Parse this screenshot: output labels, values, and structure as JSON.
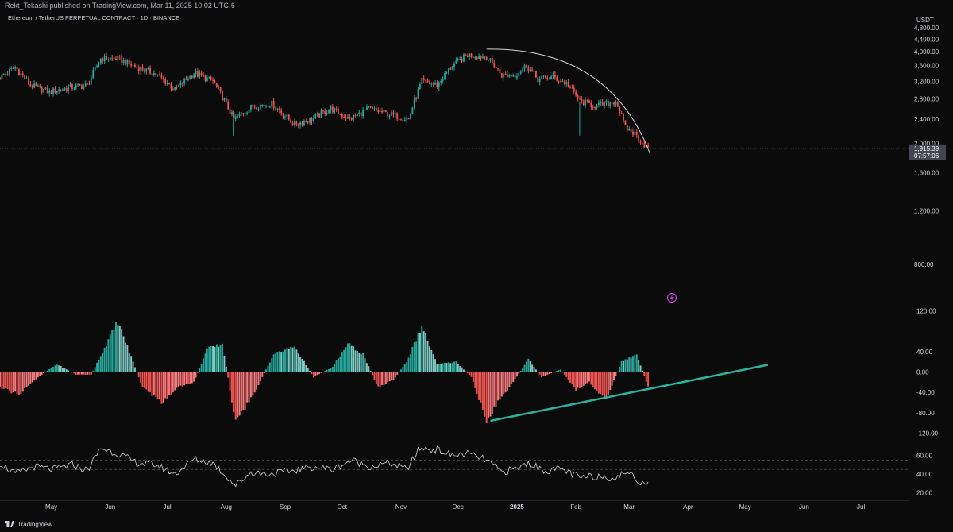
{
  "header": {
    "published": "Rekt_Tekashi published on TradingView.com, Mar 11, 2025 10:02 UTC-6",
    "symbol": "Ethereum / TetherUS PERPETUAL CONTRACT · 1D · BINANCE"
  },
  "footer": {
    "brand": "TradingView"
  },
  "colors": {
    "up": "#26a69a",
    "down": "#ef5350",
    "up_hist": "#80cbc4",
    "down_hist": "#f77c80",
    "bg": "#0b0b0b",
    "trend": "#2bb59a",
    "arc": "#d9d9d9",
    "rsi": "#d1d4dc"
  },
  "chart_data": [
    {
      "type": "candlestick",
      "title": "Ethereum / TetherUS PERPETUAL CONTRACT · 1D · BINANCE",
      "unit": "USDT",
      "x_labels": [
        "May",
        "Jun",
        "Jul",
        "Aug",
        "Sep",
        "Oct",
        "Nov",
        "Dec",
        "2025",
        "Feb",
        "Mar",
        "Apr",
        "May",
        "Jun",
        "Jul"
      ],
      "x_label_dates": [
        "2024-05-01",
        "2024-06-01",
        "2024-07-01",
        "2024-08-01",
        "2024-09-01",
        "2024-10-01",
        "2024-11-01",
        "2024-12-01",
        "2025-01-01",
        "2025-02-01",
        "2025-03-01",
        "2025-04-01",
        "2025-05-01",
        "2025-06-01",
        "2025-07-01"
      ],
      "x_range": [
        "2024-04-04",
        "2025-07-26"
      ],
      "y_ticks": [
        "4,800.00",
        "4,400.00",
        "4,000.00",
        "3,600.00",
        "3,200.00",
        "2,800.00",
        "2,400.00",
        "2,000.00",
        "1,600.00",
        "1,200.00",
        "800.00"
      ],
      "y_tick_values": [
        4800,
        4400,
        4000,
        3600,
        3200,
        2800,
        2400,
        2000,
        1600,
        1200,
        800
      ],
      "ylim": [
        600,
        5000
      ],
      "price_scale": "log",
      "last_price": "1,915.39",
      "countdown": "07:57:06",
      "close_series": {
        "dates": [
          "2024-04-04",
          "2024-04-12",
          "2024-04-20",
          "2024-04-30",
          "2024-05-10",
          "2024-05-20",
          "2024-05-27",
          "2024-06-05",
          "2024-06-15",
          "2024-06-25",
          "2024-07-05",
          "2024-07-15",
          "2024-07-25",
          "2024-08-05",
          "2024-08-15",
          "2024-08-25",
          "2024-09-06",
          "2024-09-15",
          "2024-09-25",
          "2024-10-05",
          "2024-10-15",
          "2024-10-25",
          "2024-11-05",
          "2024-11-12",
          "2024-11-20",
          "2024-11-28",
          "2024-12-06",
          "2024-12-16",
          "2024-12-24",
          "2024-12-31",
          "2025-01-06",
          "2025-01-12",
          "2025-01-20",
          "2025-01-27",
          "2025-02-03",
          "2025-02-12",
          "2025-02-22",
          "2025-02-27",
          "2025-03-04",
          "2025-03-11"
        ],
        "values": [
          3300,
          3550,
          3100,
          2950,
          3050,
          3100,
          3800,
          3800,
          3550,
          3380,
          3000,
          3400,
          3200,
          2400,
          2650,
          2700,
          2300,
          2400,
          2600,
          2400,
          2600,
          2500,
          2400,
          3200,
          3100,
          3600,
          3900,
          3850,
          3350,
          3350,
          3600,
          3250,
          3300,
          3150,
          2750,
          2650,
          2750,
          2250,
          2150,
          1915
        ]
      },
      "arc": {
        "from": [
          "2024-12-16",
          4080
        ],
        "to": [
          "2025-03-12",
          1850
        ]
      }
    },
    {
      "type": "histogram",
      "y_ticks": [
        "120.00",
        "40.00",
        "0.00",
        "-40.00",
        "-80.00",
        "-120.00"
      ],
      "y_tick_values": [
        120,
        40,
        0,
        -40,
        -80,
        -120
      ],
      "ylim": [
        -135,
        135
      ],
      "series": {
        "dates": [
          "2024-04-04",
          "2024-04-14",
          "2024-04-24",
          "2024-05-04",
          "2024-05-14",
          "2024-05-22",
          "2024-05-28",
          "2024-06-05",
          "2024-06-18",
          "2024-06-28",
          "2024-07-07",
          "2024-07-15",
          "2024-07-22",
          "2024-07-30",
          "2024-08-06",
          "2024-08-16",
          "2024-08-26",
          "2024-09-06",
          "2024-09-16",
          "2024-09-26",
          "2024-10-04",
          "2024-10-12",
          "2024-10-20",
          "2024-10-28",
          "2024-11-04",
          "2024-11-12",
          "2024-11-20",
          "2024-11-30",
          "2024-12-08",
          "2024-12-16",
          "2024-12-22",
          "2024-12-30",
          "2025-01-07",
          "2025-01-14",
          "2025-01-24",
          "2025-02-01",
          "2025-02-08",
          "2025-02-17",
          "2025-02-25",
          "2025-03-05",
          "2025-03-11"
        ],
        "values": [
          -30,
          -45,
          -10,
          15,
          -5,
          -5,
          40,
          100,
          -30,
          -60,
          -30,
          -20,
          45,
          55,
          -100,
          -40,
          35,
          50,
          -10,
          10,
          55,
          35,
          -30,
          -15,
          20,
          90,
          15,
          20,
          -10,
          -95,
          -60,
          -20,
          25,
          -10,
          5,
          -35,
          -20,
          -55,
          20,
          35,
          -30
        ]
      },
      "trendline": {
        "from": [
          "2024-12-18",
          -96
        ],
        "to": [
          "2025-05-13",
          14
        ]
      }
    },
    {
      "type": "line",
      "y_ticks": [
        "60.00",
        "40.00",
        "20.00"
      ],
      "y_tick_values": [
        60,
        40,
        20
      ],
      "ylim": [
        12,
        75
      ],
      "bands": [
        55,
        45
      ],
      "series": {
        "dates": [
          "2024-04-04",
          "2024-04-12",
          "2024-04-22",
          "2024-05-02",
          "2024-05-12",
          "2024-05-20",
          "2024-05-27",
          "2024-06-05",
          "2024-06-15",
          "2024-06-25",
          "2024-07-05",
          "2024-07-15",
          "2024-07-25",
          "2024-08-06",
          "2024-08-14",
          "2024-08-24",
          "2024-09-06",
          "2024-09-16",
          "2024-09-26",
          "2024-10-06",
          "2024-10-16",
          "2024-10-26",
          "2024-11-04",
          "2024-11-11",
          "2024-11-20",
          "2024-11-28",
          "2024-12-06",
          "2024-12-16",
          "2024-12-24",
          "2025-01-01",
          "2025-01-07",
          "2025-01-15",
          "2025-01-25",
          "2025-02-03",
          "2025-02-13",
          "2025-02-23",
          "2025-02-28",
          "2025-03-05",
          "2025-03-11"
        ],
        "values": [
          52,
          40,
          48,
          45,
          50,
          44,
          68,
          62,
          52,
          50,
          40,
          56,
          52,
          28,
          42,
          40,
          44,
          48,
          45,
          55,
          48,
          52,
          45,
          68,
          66,
          60,
          62,
          55,
          42,
          46,
          52,
          44,
          45,
          36,
          38,
          36,
          44,
          33,
          31
        ]
      }
    }
  ]
}
